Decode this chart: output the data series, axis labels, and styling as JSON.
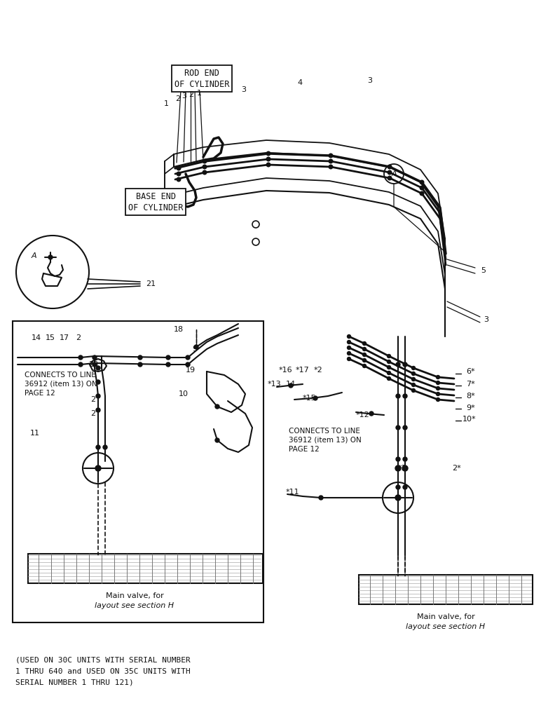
{
  "bg_color": "#ffffff",
  "line_color": "#111111",
  "bottom_text": [
    "(USED ON 30C UNITS WITH SERIAL NUMBER",
    "1 THRU 640 and USED ON 35C UNITS WITH",
    "SERIAL NUMBER 1 THRU 121)"
  ],
  "rod_end_label": "ROD END\nOF CYLINDER",
  "base_end_label": "BASE END\nOF CYLINDER",
  "mv_line1": "Main valve, for",
  "mv_line2": "layout see section H",
  "connects_label": "CONNECTS TO LINE\n36912 (item 13) ON\nPAGE 12"
}
